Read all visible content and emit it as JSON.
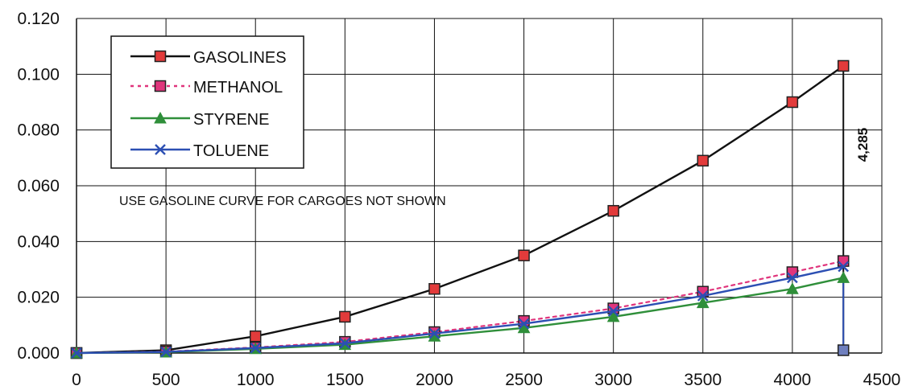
{
  "chart_data": {
    "type": "line",
    "x": [
      0,
      500,
      1000,
      1500,
      2000,
      2500,
      3000,
      3500,
      4000,
      4285
    ],
    "xlim": [
      0,
      4500
    ],
    "ylim": [
      0,
      0.12
    ],
    "x_ticks": [
      "0",
      "500",
      "1000",
      "1500",
      "2000",
      "2500",
      "3000",
      "3500",
      "4000",
      "4500"
    ],
    "y_ticks": [
      "0.000",
      "0.020",
      "0.040",
      "0.060",
      "0.080",
      "0.100",
      "0.120"
    ],
    "grid": true,
    "legend_position": "top-left",
    "series": [
      {
        "name": "GASOLINES",
        "values": [
          0.0,
          0.001,
          0.006,
          0.013,
          0.023,
          0.035,
          0.051,
          0.069,
          0.09,
          0.103
        ],
        "line_color": "#111111",
        "marker_color": "#e23b3b",
        "marker": "square",
        "dash": "solid"
      },
      {
        "name": "METHANOL",
        "values": [
          0.0,
          0.0005,
          0.002,
          0.004,
          0.0075,
          0.0115,
          0.016,
          0.022,
          0.029,
          0.033
        ],
        "line_color": "#e0357c",
        "marker_color": "#e0357c",
        "marker": "square",
        "dash": "dotted"
      },
      {
        "name": "STYRENE",
        "values": [
          0.0,
          0.0003,
          0.0015,
          0.003,
          0.006,
          0.009,
          0.013,
          0.018,
          0.023,
          0.027
        ],
        "line_color": "#2f8f3a",
        "marker_color": "#2f8f3a",
        "marker": "triangle",
        "dash": "solid"
      },
      {
        "name": "TOLUENE",
        "values": [
          0.0,
          0.0004,
          0.0018,
          0.0035,
          0.007,
          0.0105,
          0.015,
          0.0205,
          0.027,
          0.031
        ],
        "line_color": "#2c4fb3",
        "marker_color": "#2c4fb3",
        "marker": "x",
        "dash": "solid"
      }
    ],
    "annotations": [
      "USE GASOLINE CURVE FOR CARGOES NOT SHOWN",
      "4,285"
    ],
    "vertical_marker": {
      "x": 4285,
      "y_top": 0.103,
      "y_bottom": 0.001,
      "color": "#111111"
    },
    "vertical_drop_lines": [
      {
        "x": 4285,
        "y_top": 0.027,
        "y_bottom": 0.001,
        "color": "#2c4fb3"
      }
    ],
    "extra_points": [
      {
        "x": 4285,
        "y": 0.001,
        "marker": "square",
        "color": "#6f7fbe"
      }
    ]
  }
}
